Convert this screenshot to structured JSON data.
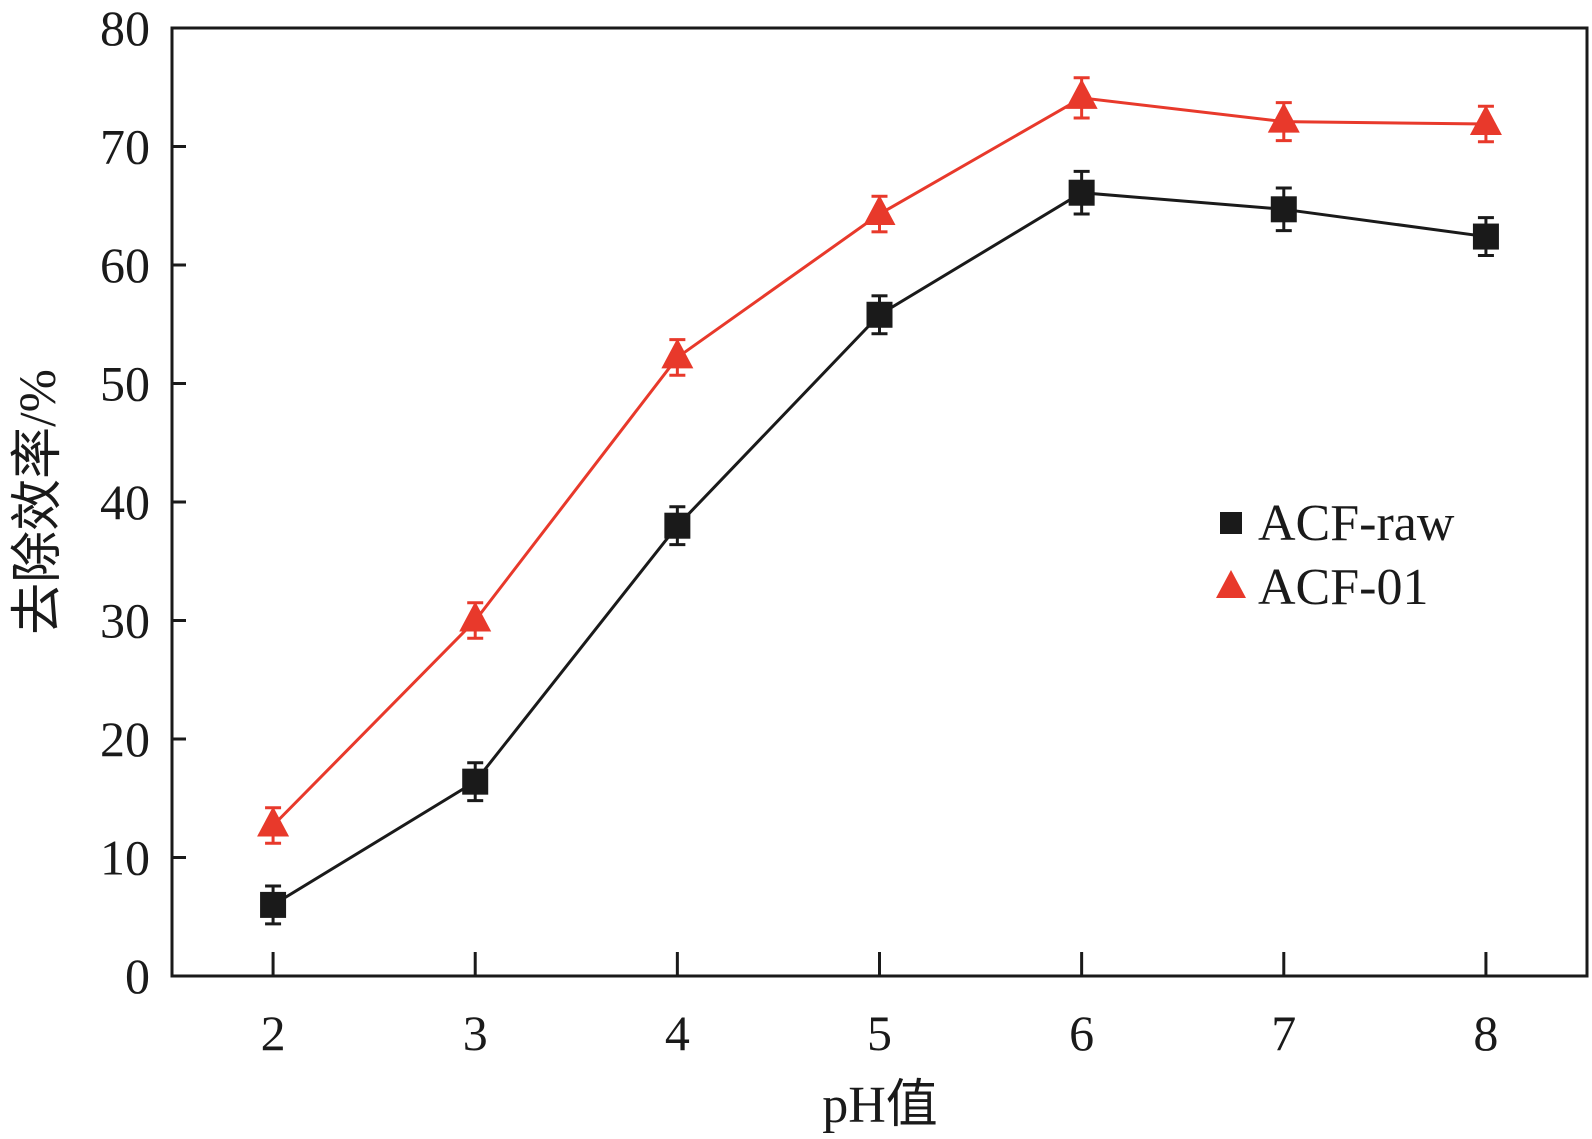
{
  "chart_data": {
    "type": "line",
    "title": "",
    "xlabel": "pH值",
    "ylabel": "去除效率/%",
    "x": [
      2,
      3,
      4,
      5,
      6,
      7,
      8
    ],
    "xlim": [
      1.5,
      8.5
    ],
    "ylim": [
      0,
      80
    ],
    "xticks": [
      "2",
      "3",
      "4",
      "5",
      "6",
      "7",
      "8"
    ],
    "yticks": [
      "0",
      "10",
      "20",
      "30",
      "40",
      "50",
      "60",
      "70",
      "80"
    ],
    "legend_position": "right",
    "grid": false,
    "series": [
      {
        "name": "ACF-raw",
        "marker": "square",
        "color": "#1a1a1a",
        "values": [
          6.0,
          16.4,
          38.0,
          55.8,
          66.1,
          64.7,
          62.4
        ],
        "errors": [
          1.6,
          1.6,
          1.6,
          1.6,
          1.8,
          1.8,
          1.6
        ]
      },
      {
        "name": "ACF-01",
        "marker": "triangle",
        "color": "#e8392b",
        "values": [
          12.7,
          30.0,
          52.2,
          64.3,
          74.1,
          72.1,
          71.9
        ],
        "errors": [
          1.5,
          1.5,
          1.5,
          1.5,
          1.7,
          1.6,
          1.5
        ]
      }
    ]
  }
}
